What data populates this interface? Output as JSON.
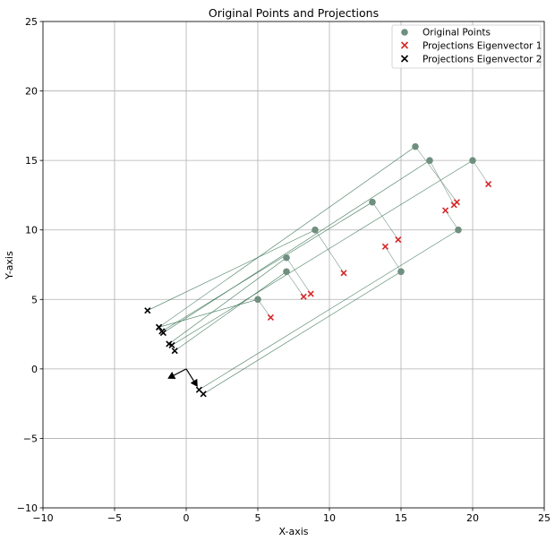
{
  "chart_data": {
    "type": "scatter",
    "title": "Original Points and Projections",
    "xlabel": "X-axis",
    "ylabel": "Y-axis",
    "xlim": [
      -10,
      25
    ],
    "ylim": [
      -10,
      25
    ],
    "xticks": [
      -10,
      -5,
      0,
      5,
      10,
      15,
      20,
      25
    ],
    "yticks": [
      -10,
      -5,
      0,
      5,
      10,
      15,
      20,
      25
    ],
    "grid": true,
    "legend_position": "top-right",
    "colors": {
      "original": "#6f8f7f",
      "proj1": "#d62728",
      "proj2": "#000000",
      "line1": "#6f8f7f",
      "line2": "#2e6b4a"
    },
    "series": [
      {
        "name": "Original Points",
        "marker": "circle",
        "points": [
          [
            16,
            16
          ],
          [
            17,
            15
          ],
          [
            20,
            15
          ],
          [
            13,
            12
          ],
          [
            9,
            10
          ],
          [
            19,
            10
          ],
          [
            7,
            8
          ],
          [
            7,
            7
          ],
          [
            15,
            7
          ],
          [
            5,
            5
          ]
        ]
      },
      {
        "name": "Projections Eigenvector 1",
        "marker": "x",
        "points": [
          [
            18.9,
            12.0
          ],
          [
            18.7,
            11.8
          ],
          [
            21.1,
            13.3
          ],
          [
            14.8,
            9.3
          ],
          [
            11.0,
            6.9
          ],
          [
            18.1,
            11.4
          ],
          [
            8.7,
            5.4
          ],
          [
            8.2,
            5.2
          ],
          [
            13.9,
            8.8
          ],
          [
            5.9,
            3.7
          ]
        ]
      },
      {
        "name": "Projections Eigenvector 2",
        "marker": "x",
        "points": [
          [
            -1.9,
            3.0
          ],
          [
            -1.6,
            2.6
          ],
          [
            -1.0,
            1.7
          ],
          [
            -1.7,
            2.7
          ],
          [
            -2.7,
            4.2
          ],
          [
            0.9,
            -1.5
          ],
          [
            -1.2,
            1.8
          ],
          [
            -0.8,
            1.3
          ],
          [
            1.2,
            -1.8
          ],
          [
            -1.9,
            3.0
          ]
        ]
      }
    ],
    "eigenvectors": [
      {
        "from": [
          0,
          0
        ],
        "to": [
          -1.3,
          -0.7
        ]
      },
      {
        "from": [
          0,
          0
        ],
        "to": [
          0.8,
          -1.3
        ]
      }
    ]
  }
}
